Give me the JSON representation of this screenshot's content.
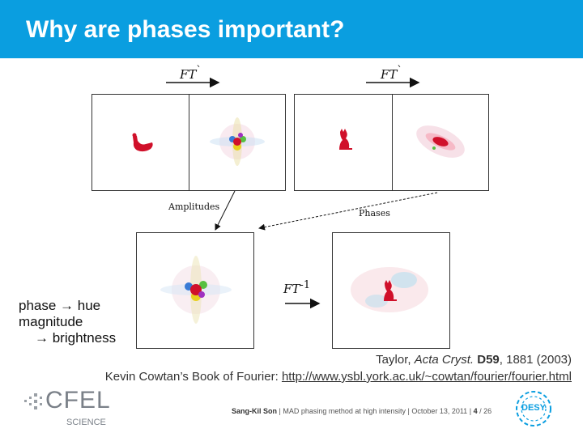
{
  "title": "Why are phases important?",
  "ft_labels": {
    "forward": "FT",
    "forward_sup": "`",
    "inverse": "FT",
    "inverse_sup": "-1"
  },
  "captions": {
    "amplitudes": "Amplitudes",
    "phases": "Phases"
  },
  "legend": {
    "line1": "phase → hue",
    "line2": "magnitude",
    "line3": "→ brightness"
  },
  "reference": {
    "author": "Taylor, ",
    "journal": "Acta Cryst.",
    "volume": "D59",
    "rest": ", 1881 (2003)",
    "line2_prefix": "Kevin Cowtan’s Book of Fourier: ",
    "link": "http://www.ysbl.york.ac.uk/~cowtan/fourier/fourier.html"
  },
  "footer": {
    "author": "Sang-Kil Son",
    "talk": "MAD phasing method at high intensity",
    "date": "October 13, 2011",
    "page": "4",
    "total": "/ 26"
  },
  "logos": {
    "cfel": "CFEL",
    "science": "SCIENCE",
    "desy": "DESY"
  },
  "colors": {
    "header": "#0a9ee0",
    "figure_red": "#d0102a",
    "desy_blue": "#0a9ee0"
  }
}
